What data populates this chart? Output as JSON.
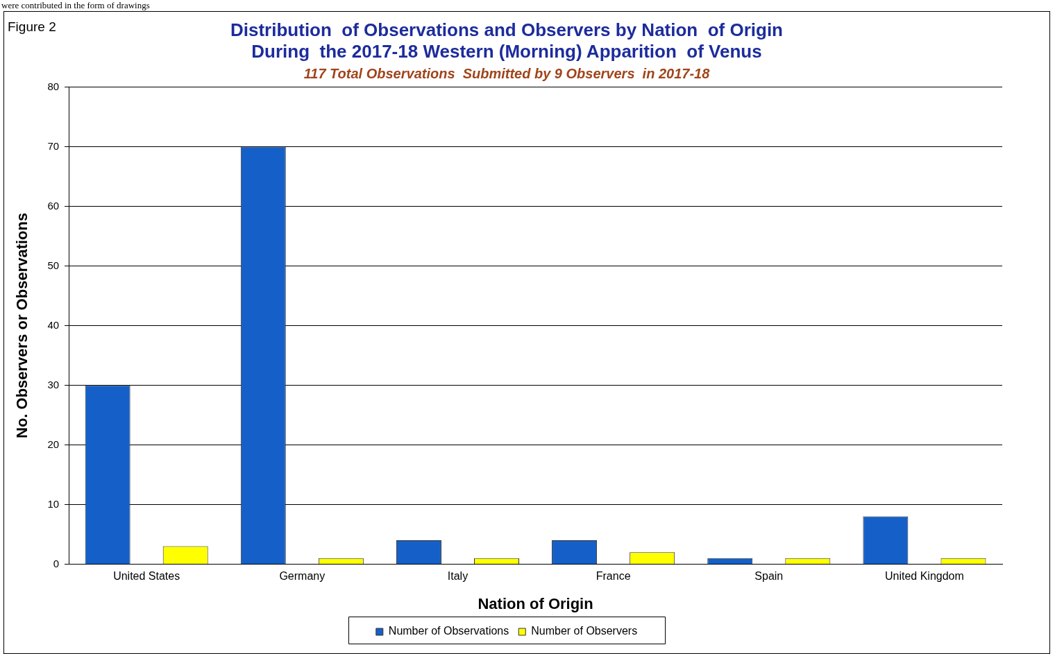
{
  "chart_data": {
    "type": "bar",
    "title": [
      "Distribution  of Observations and Observers by Nation  of Origin",
      "During  the 2017-18 Western (Morning) Apparition  of Venus"
    ],
    "subtitle": "117 Total Observations  Submitted by 9 Observers  in 2017-18",
    "xlabel": "Nation of Origin",
    "ylabel": "No. Observers or Observations",
    "categories": [
      "United States",
      "Germany",
      "Italy",
      "France",
      "Spain",
      "United Kingdom"
    ],
    "series": [
      {
        "name": "Number of Observations",
        "color": "#1560c8",
        "values": [
          30,
          70,
          4,
          4,
          1,
          8
        ]
      },
      {
        "name": "Number of Observers",
        "color": "#ffff00",
        "values": [
          3,
          1,
          1,
          2,
          1,
          1
        ]
      }
    ],
    "ylim": [
      0,
      80
    ],
    "yticks": [
      0,
      10,
      20,
      30,
      40,
      50,
      60,
      70,
      80
    ],
    "grid": "y",
    "legend": "bottom",
    "annotations": [
      "were contributed in the form of drawings",
      "Figure 2"
    ]
  }
}
